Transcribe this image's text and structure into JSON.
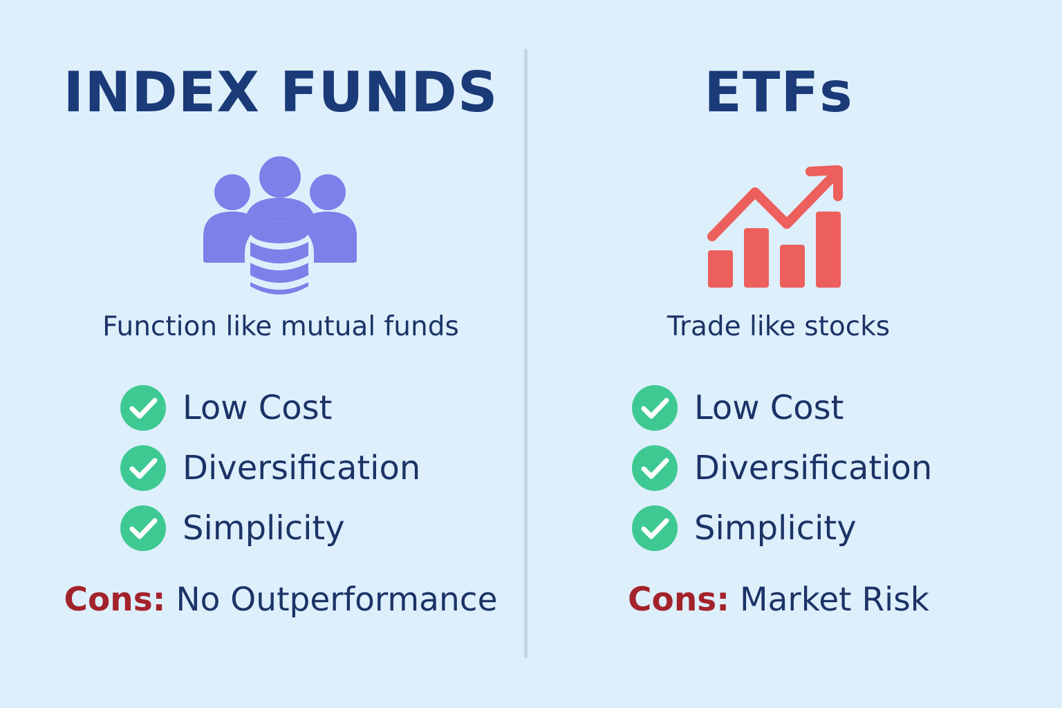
{
  "colors": {
    "background": "#deeffc",
    "title": "#1b3a78",
    "text": "#1b3366",
    "check": "#3ec993",
    "cons_prefix": "#a3232b",
    "people_icon": "#7b81e8",
    "chart_icon": "#ec5f5c"
  },
  "left": {
    "title": "INDEX FUNDS",
    "icon": "people-coins-icon",
    "subtitle": "Function like mutual funds",
    "benefits": [
      {
        "label": "Low Cost",
        "icon": "check-circle-icon"
      },
      {
        "label": "Diversification",
        "icon": "check-circle-icon"
      },
      {
        "label": "Simplicity",
        "icon": "check-circle-icon"
      }
    ],
    "cons_prefix": "Cons:",
    "cons_text": "No Outperformance"
  },
  "right": {
    "title": "ETFs",
    "icon": "chart-up-arrow-icon",
    "subtitle": "Trade like stocks",
    "benefits": [
      {
        "label": "Low Cost",
        "icon": "check-circle-icon"
      },
      {
        "label": "Diversification",
        "icon": "check-circle-icon"
      },
      {
        "label": "Simplicity",
        "icon": "check-circle-icon"
      }
    ],
    "cons_prefix": "Cons:",
    "cons_text": "Market Risk"
  }
}
